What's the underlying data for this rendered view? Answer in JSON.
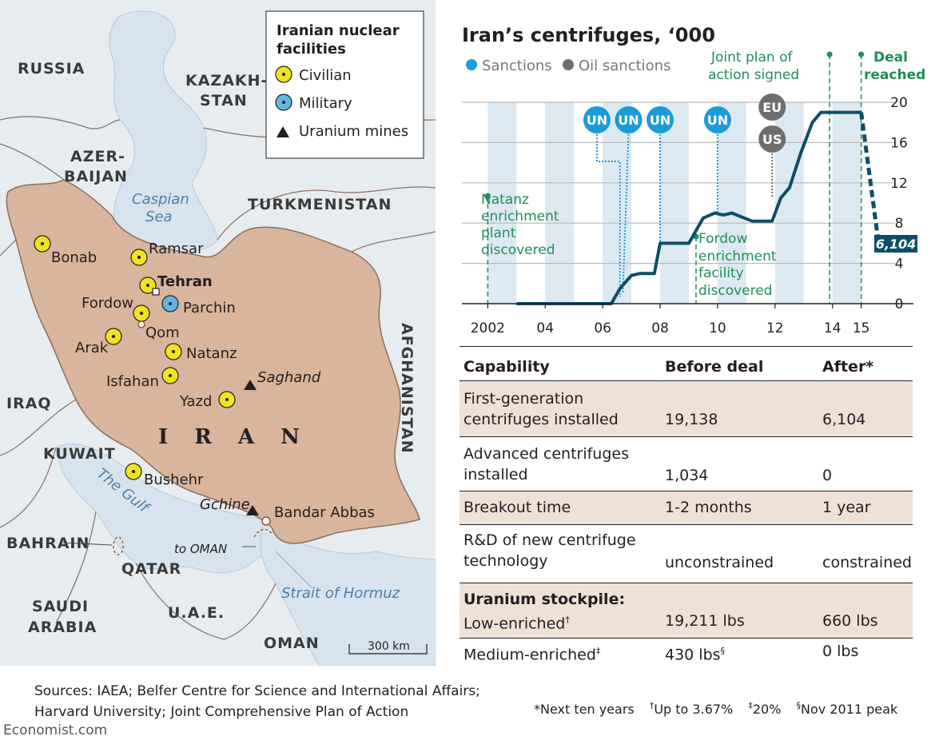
{
  "map": {
    "legend": {
      "title_line1": "Iranian nuclear",
      "title_line2": "facilities",
      "civilian": "Civilian",
      "military": "Military",
      "mines": "Uranium mines"
    },
    "countries": {
      "russia": "RUSSIA",
      "kazakhstan_1": "KAZAKH-",
      "kazakhstan_2": "STAN",
      "azerbaijan_1": "AZER-",
      "azerbaijan_2": "BAIJAN",
      "turkmenistan": "TURKMENISTAN",
      "iraq": "IRAQ",
      "afghanistan": "AFGHANISTAN",
      "kuwait": "KUWAIT",
      "bahrain": "BAHRAIN",
      "qatar": "QATAR",
      "saudi_1": "SAUDI",
      "saudi_2": "ARABIA",
      "uae": "U.A.E.",
      "oman": "OMAN",
      "iran": "I R A N"
    },
    "water": {
      "caspian_1": "Caspian",
      "caspian_2": "Sea",
      "gulf": "The Gulf",
      "hormuz": "Strait of Hormuz",
      "to_oman": "to OMAN"
    },
    "sites": {
      "bonab": "Bonab",
      "ramsar": "Ramsar",
      "tehran": "Tehran",
      "fordow": "Fordow",
      "parchin": "Parchin",
      "qom": "Qom",
      "arak": "Arak",
      "natanz": "Natanz",
      "isfahan": "Isfahan",
      "yazd": "Yazd",
      "saghand": "Saghand",
      "bushehr": "Bushehr",
      "gchine": "Gchine",
      "bandar_abbas": "Bandar Abbas"
    },
    "scale": "300 km",
    "colors": {
      "iran": "#d8b59c",
      "water": "#d7e4ef",
      "land": "#e6ecef",
      "border": "#8a6f60"
    }
  },
  "chart_data": {
    "type": "line",
    "title": "Iran’s centrifuges, ‘000",
    "legend": {
      "sanctions": "Sanctions",
      "oil_sanctions": "Oil sanctions"
    },
    "x_ticks": [
      "2002",
      "04",
      "06",
      "08",
      "10",
      "12",
      "14",
      "15"
    ],
    "x_tick_values": [
      2002,
      2004,
      2006,
      2008,
      2010,
      2012,
      2014,
      2015
    ],
    "y_ticks": [
      "0",
      "4",
      "8",
      "12",
      "16",
      "20"
    ],
    "y_tick_values": [
      0,
      4,
      8,
      12,
      16,
      20
    ],
    "xlim": [
      2001.1,
      2015.9
    ],
    "ylim": [
      0,
      20
    ],
    "series": [
      {
        "x": [
          2003,
          2006.3,
          2006.6,
          2007.0,
          2007.3,
          2007.8,
          2008.0,
          2008.4,
          2009.0,
          2009.5,
          2009.9,
          2010.2,
          2010.5,
          2011.2,
          2011.5,
          2011.9,
          2012.2,
          2012.5,
          2012.9,
          2013.3,
          2013.6,
          2014.1,
          2015.0
        ],
        "y": [
          0,
          0,
          1.5,
          2.8,
          3.0,
          3.0,
          6.0,
          6.0,
          6.0,
          8.5,
          9.0,
          8.8,
          9.0,
          8.2,
          8.2,
          8.2,
          10.5,
          11.5,
          15.0,
          18.0,
          19.0,
          19.0,
          19.0
        ]
      },
      {
        "dashed": true,
        "x": [
          2015.0,
          2015.6
        ],
        "y": [
          19.0,
          6.104
        ]
      }
    ],
    "end_label": "6,104",
    "sanction_badges": [
      "UN",
      "UN",
      "UN",
      "UN"
    ],
    "oil_badges": [
      "EU",
      "US"
    ],
    "events": {
      "natanz_1": "Natanz",
      "natanz_2": "enrichment",
      "natanz_3": "plant",
      "natanz_4": "discovered",
      "fordow_1": "Fordow",
      "fordow_2": "enrichment",
      "fordow_3": "facility",
      "fordow_4": "discovered",
      "joint_1": "Joint plan of",
      "joint_2": "action signed",
      "deal_1": "Deal",
      "deal_2": "reached"
    },
    "colors": {
      "line": "#0d4e66",
      "sanctions": "#1b9bd7",
      "oil": "#6e6e6e",
      "events": "#1e8e5a",
      "band": "#dde9f2"
    }
  },
  "table": {
    "headers": [
      "Capability",
      "Before deal",
      "After*"
    ],
    "rows": [
      {
        "cap_1": "First-generation",
        "cap_2": "centrifuges installed",
        "before": "19,138",
        "after": "6,104"
      },
      {
        "cap_1": "Advanced centrifuges",
        "cap_2": "installed",
        "before": "1,034",
        "after": "0"
      },
      {
        "cap_1": "Breakout time",
        "before": "1-2 months",
        "after": "1 year"
      },
      {
        "cap_1": "R&D of new centrifuge",
        "cap_2": "technology",
        "before": "unconstrained",
        "after": "constrained"
      },
      {
        "cap_1": "Uranium stockpile:",
        "cap_2": "Low-enriched",
        "cap_2_sup": "†",
        "before": "19,211 lbs",
        "after": "660 lbs"
      },
      {
        "cap_1": "Medium-enriched",
        "cap_1_sup": "‡",
        "before": "430 lbs",
        "before_sup": "§",
        "after": "0 lbs"
      }
    ]
  },
  "sources": {
    "line1": "Sources: IAEA; Belfer Centre for Science and International Affairs;",
    "line2": "Harvard University; Joint Comprehensive Plan of Action"
  },
  "footnotes": {
    "star": "*Next ten years",
    "dagger_sym": "†",
    "dagger": "Up to 3.67%",
    "ddagger_sym": "‡",
    "ddagger": "20%",
    "section_sym": "§",
    "section": "Nov 2011 peak"
  },
  "brand": "Economist.com"
}
